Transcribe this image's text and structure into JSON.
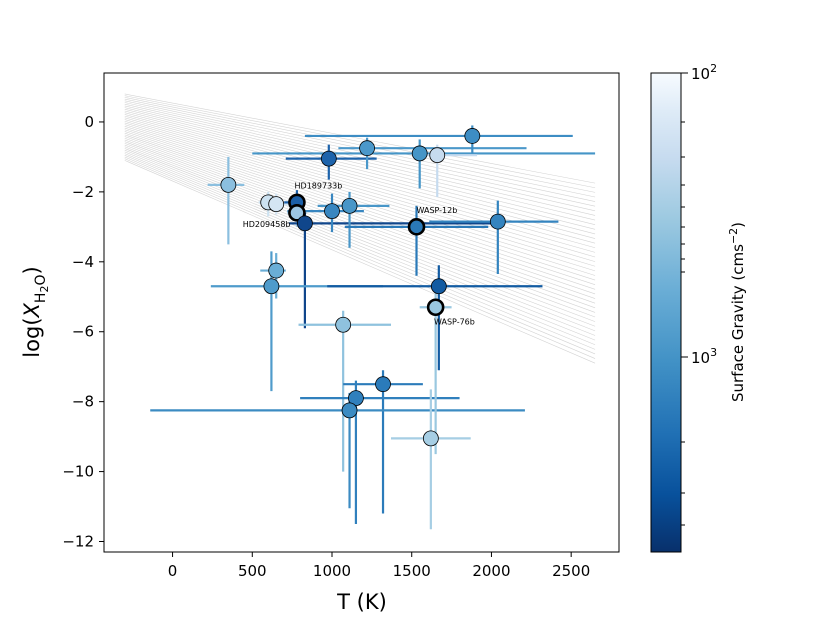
{
  "chart_data": {
    "type": "scatter",
    "xlabel": "T (K)",
    "ylabel_prefix": "log(",
    "ylabel_var": "X",
    "ylabel_sub": "H",
    "ylabel_sub2": "2",
    "ylabel_sub3": "O",
    "ylabel_suffix": ")",
    "xlim": [
      -430,
      2800
    ],
    "ylim": [
      -12.3,
      1.4
    ],
    "x_ticks": [
      0,
      500,
      1000,
      1500,
      2000,
      2500
    ],
    "x_tick_labels": [
      "0",
      "500",
      "1000",
      "1500",
      "2000",
      "2500"
    ],
    "y_ticks": [
      0,
      -2,
      -4,
      -6,
      -8,
      -10,
      -12
    ],
    "y_tick_labels": [
      "0",
      "−2",
      "−4",
      "−6",
      "−8",
      "−10",
      "−12"
    ],
    "colorbar": {
      "label_prefix": "Surface Gravity (cms",
      "label_sup": "−2",
      "label_suffix": ")",
      "scale": "log",
      "range": [
        150,
        100
      ],
      "tick_top_base": "10",
      "tick_top_exp": "2",
      "tick_mid_base": "10",
      "tick_mid_exp": "3",
      "colormap": "Blues"
    },
    "band": {
      "x_start": -300,
      "x_end": 2650,
      "y_start_top": 0.8,
      "y_start_bottom": -1.1,
      "y_end_top": -1.75,
      "y_end_bottom": -6.9,
      "n_lines": 40,
      "color": "#d3d3d3"
    },
    "points": [
      {
        "x": 350,
        "y": -1.8,
        "xerr": [
          130,
          100
        ],
        "yerr": [
          0.8,
          1.7
        ],
        "color": "#8bbfdf"
      },
      {
        "x": 600,
        "y": -2.3,
        "xerr": [
          60,
          80
        ],
        "yerr": [
          0.3,
          0.4
        ],
        "color": "#cde2f1"
      },
      {
        "x": 650,
        "y": -2.35,
        "xerr": [
          80,
          80
        ],
        "yerr": [
          0.3,
          0.3
        ],
        "color": "#d4e5f3"
      },
      {
        "x": 780,
        "y": -2.3,
        "xerr": [
          80,
          50
        ],
        "yerr": [
          0.35,
          0.3
        ],
        "color": "#1b5fa8",
        "highlight": true
      },
      {
        "x": 780,
        "y": -2.6,
        "xerr": [
          60,
          60
        ],
        "yerr": [
          0.3,
          0.4
        ],
        "color": "#9cc6e4",
        "highlight": true
      },
      {
        "x": 830,
        "y": -2.9,
        "xerr": [
          100,
          1200
        ],
        "yerr": [
          0.3,
          3.0
        ],
        "color": "#10468b"
      },
      {
        "x": 650,
        "y": -4.25,
        "xerr": [
          100,
          60
        ],
        "yerr": [
          0.5,
          0.8
        ],
        "color": "#6aaed6"
      },
      {
        "x": 620,
        "y": -4.7,
        "xerr": [
          380,
          700
        ],
        "yerr": [
          1.0,
          3.0
        ],
        "color": "#4f9bcb"
      },
      {
        "x": 980,
        "y": -1.05,
        "xerr": [
          270,
          300
        ],
        "yerr": [
          0.4,
          0.6
        ],
        "color": "#1d63ab"
      },
      {
        "x": 1000,
        "y": -2.55,
        "xerr": [
          280,
          200
        ],
        "yerr": [
          0.5,
          0.6
        ],
        "color": "#3886c0"
      },
      {
        "x": 1110,
        "y": -2.4,
        "xerr": [
          200,
          250
        ],
        "yerr": [
          0.4,
          1.2
        ],
        "color": "#4896c8"
      },
      {
        "x": 1220,
        "y": -0.75,
        "xerr": [
          180,
          1000
        ],
        "yerr": [
          0.3,
          0.6
        ],
        "color": "#4b98ca"
      },
      {
        "x": 1070,
        "y": -5.8,
        "xerr": [
          280,
          300
        ],
        "yerr": [
          0.4,
          4.2
        ],
        "color": "#8fc2de"
      },
      {
        "x": 1320,
        "y": -7.5,
        "xerr": [
          250,
          250
        ],
        "yerr": [
          0.4,
          3.7
        ],
        "color": "#2b7bba"
      },
      {
        "x": 1150,
        "y": -7.9,
        "xerr": [
          350,
          650
        ],
        "yerr": [
          0.5,
          3.6
        ],
        "color": "#3080bd"
      },
      {
        "x": 1110,
        "y": -8.25,
        "xerr": [
          1250,
          1100
        ],
        "yerr": [
          0.5,
          2.8
        ],
        "color": "#3b8bc2"
      },
      {
        "x": 1550,
        "y": -0.9,
        "xerr": [
          1050,
          1100
        ],
        "yerr": [
          0.4,
          1.0
        ],
        "color": "#4595c7"
      },
      {
        "x": 1660,
        "y": -0.95,
        "xerr": [
          150,
          250
        ],
        "yerr": [
          0.3,
          1.2
        ],
        "color": "#c6dbef"
      },
      {
        "x": 1880,
        "y": -0.4,
        "xerr": [
          1050,
          630
        ],
        "yerr": [
          0.3,
          0.5
        ],
        "color": "#3d8dc4"
      },
      {
        "x": 1530,
        "y": -3.0,
        "xerr": [
          450,
          450
        ],
        "yerr": [
          0.6,
          1.4
        ],
        "color": "#2a79b8",
        "highlight": true
      },
      {
        "x": 2040,
        "y": -2.85,
        "xerr": [
          430,
          380
        ],
        "yerr": [
          0.6,
          1.5
        ],
        "color": "#3484bf"
      },
      {
        "x": 1670,
        "y": -4.7,
        "xerr": [
          700,
          650
        ],
        "yerr": [
          0.6,
          2.4
        ],
        "color": "#125ba2"
      },
      {
        "x": 1650,
        "y": -5.3,
        "xerr": [
          100,
          100
        ],
        "yerr": [
          0.4,
          4.2
        ],
        "color": "#9ac8e0",
        "highlight": true
      },
      {
        "x": 1620,
        "y": -9.05,
        "xerr": [
          250,
          250
        ],
        "yerr": [
          1.4,
          2.6
        ],
        "color": "#a6cee4"
      }
    ],
    "annotations": [
      {
        "text": "HD189733b",
        "x": 765,
        "y": -1.9
      },
      {
        "text": "HD209458b",
        "x": 440,
        "y": -3.0
      },
      {
        "text": "WASP-12b",
        "x": 1530,
        "y": -2.6
      },
      {
        "text": "WASP-76b",
        "x": 1640,
        "y": -5.8
      }
    ]
  }
}
